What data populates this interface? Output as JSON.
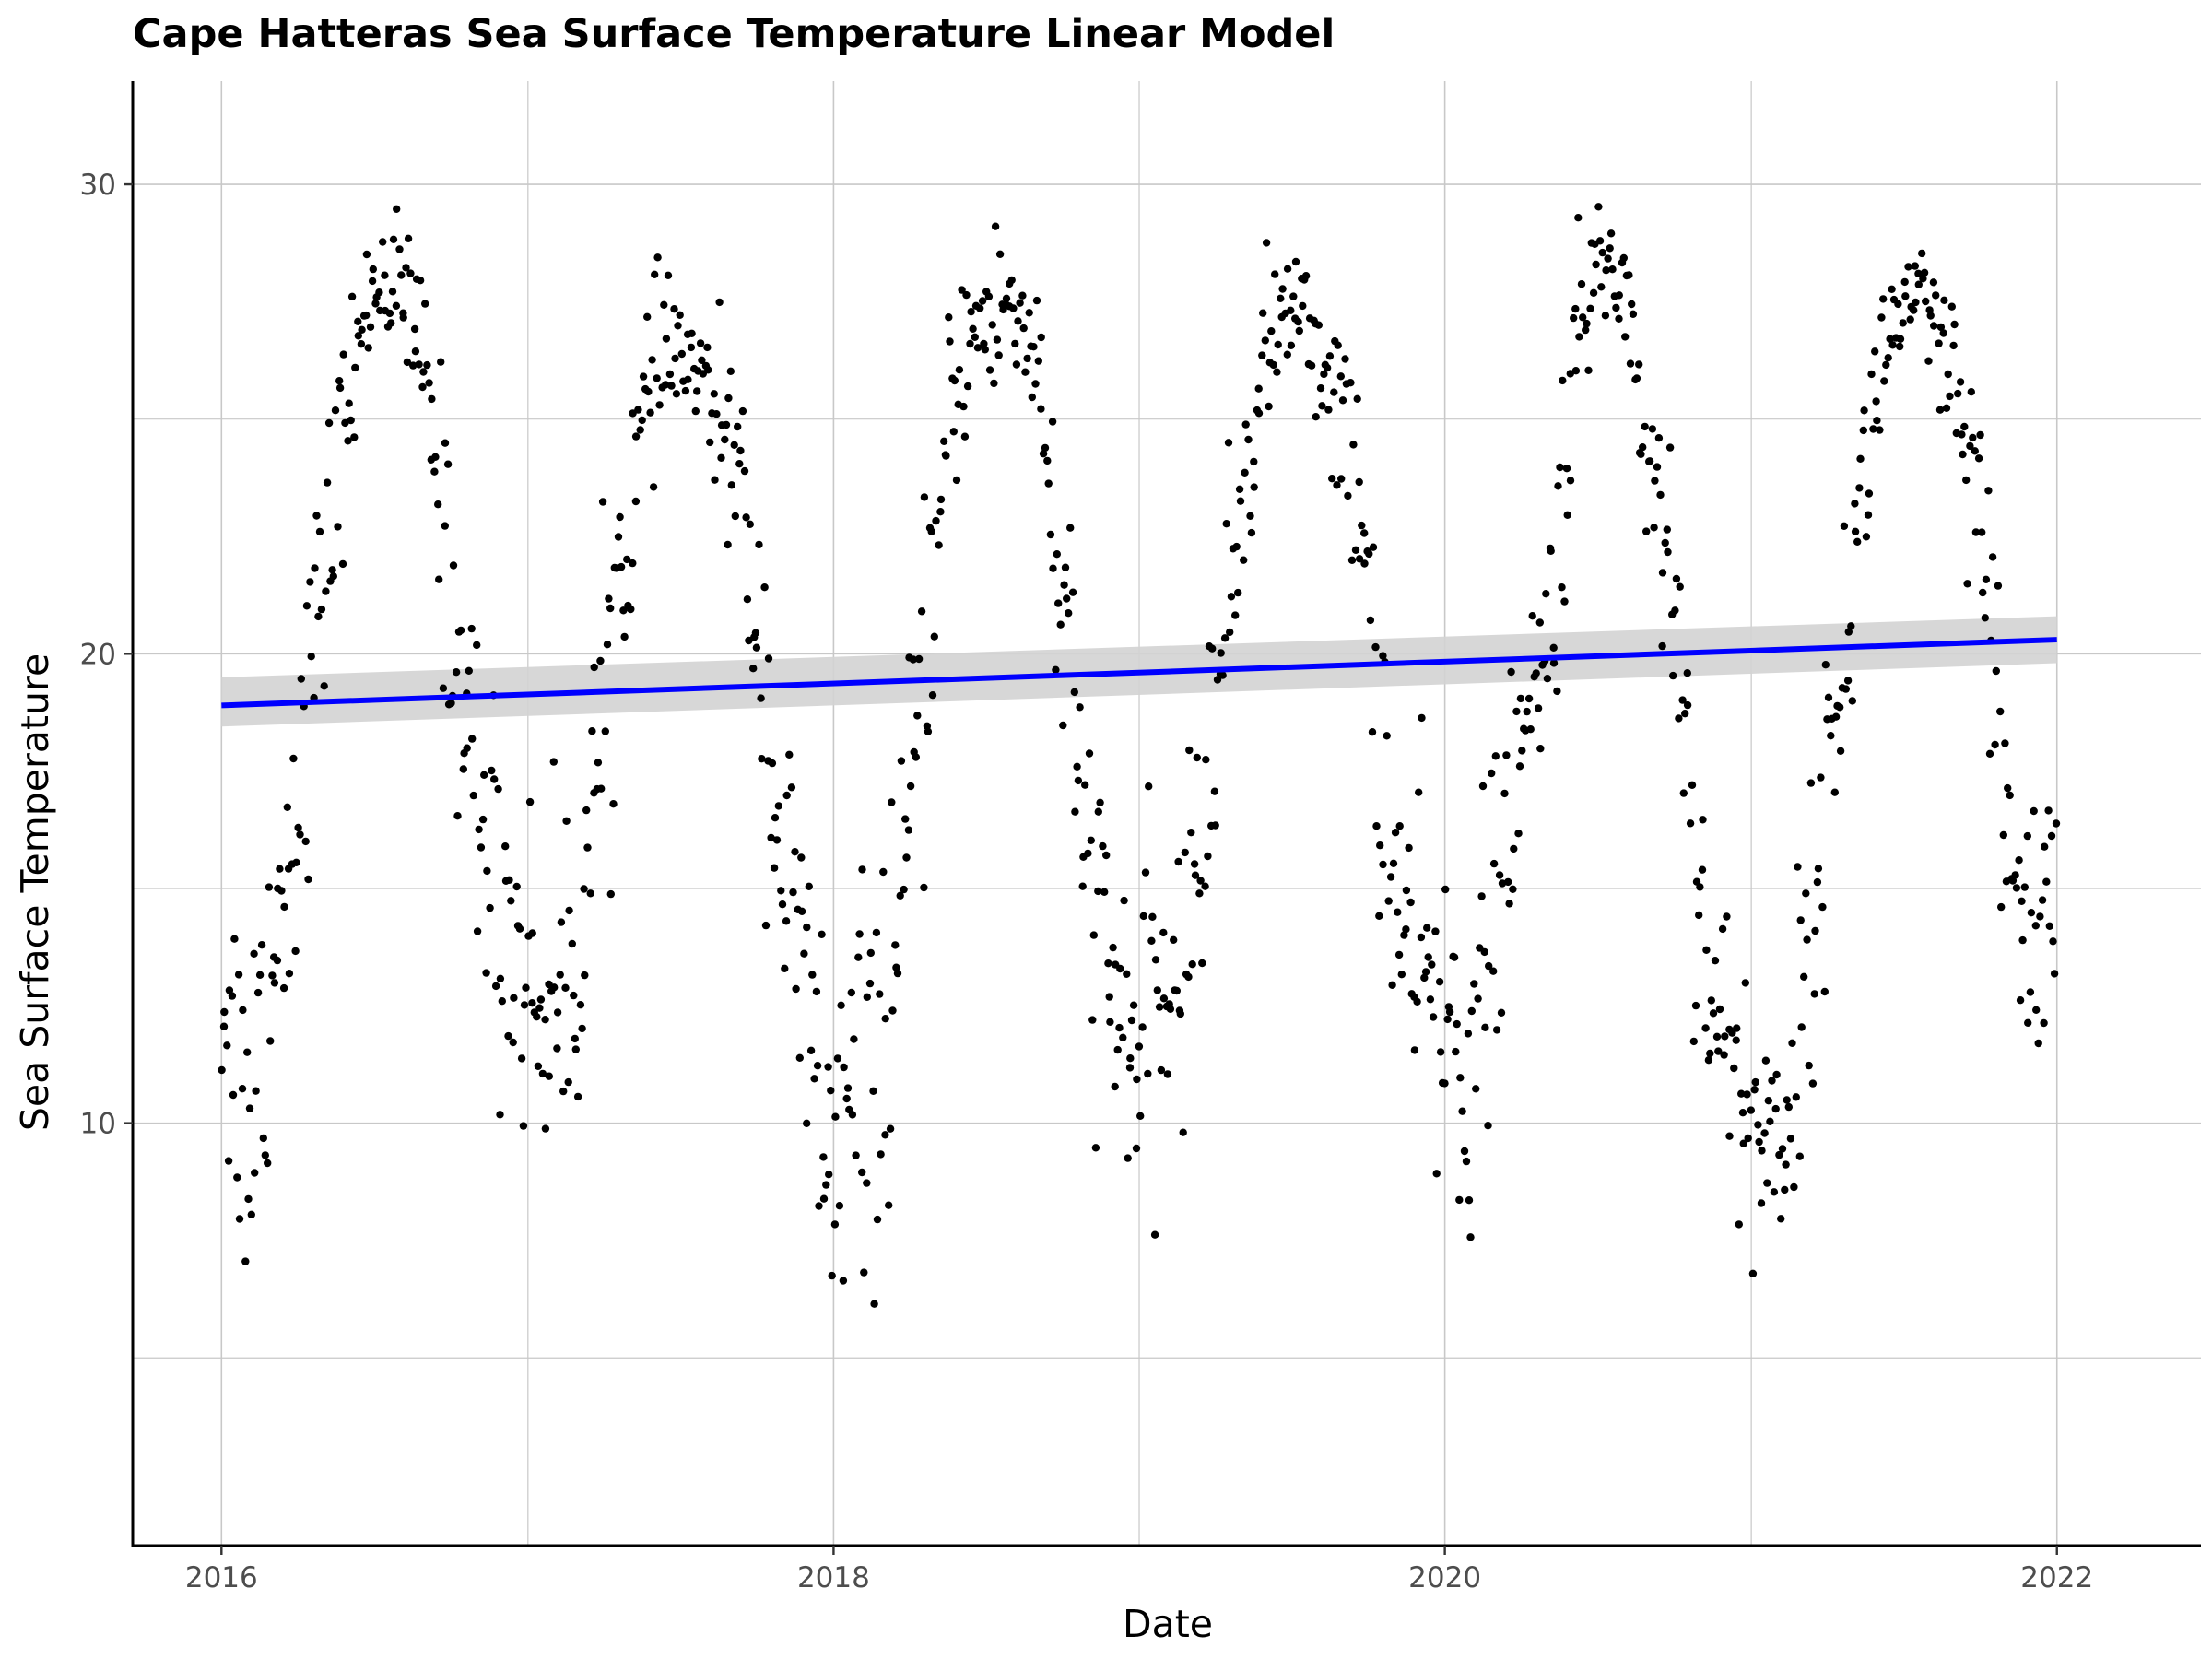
{
  "chart_data": {
    "type": "scatter",
    "title": "Cape Hatteras Sea Surface Temperature Linear Model",
    "xlabel": "Date",
    "ylabel": "Sea Surface Temperature",
    "x_ticks": [
      "2016",
      "2018",
      "2020",
      "2022"
    ],
    "y_ticks": [
      "10",
      "20",
      "30"
    ],
    "xlim": [
      "2015-09-17",
      "2022-06-22"
    ],
    "ylim": [
      1.0,
      32.2
    ],
    "grid": true,
    "legend": "none",
    "colors": {
      "points": "#000000",
      "fit_line": "#0000ff",
      "confidence_band": "#d3d3d3",
      "grid": "#c8c8c8"
    },
    "trend": {
      "type": "linear",
      "x": [
        "2016-01-01",
        "2022-01-01"
      ],
      "y": [
        18.9,
        20.3
      ],
      "ci_lower": [
        18.45,
        19.8
      ],
      "ci_upper": [
        19.5,
        20.8
      ]
    },
    "monthly_profile_x": [
      "2016-01-01",
      "2016-02-01",
      "2016-03-01",
      "2016-04-01",
      "2016-05-01",
      "2016-06-01",
      "2016-07-01",
      "2016-08-01",
      "2016-09-01",
      "2016-10-01",
      "2016-11-01",
      "2016-12-01",
      "2017-01-01",
      "2017-02-01",
      "2017-03-01",
      "2017-04-01",
      "2017-05-01",
      "2017-06-01",
      "2017-07-01",
      "2017-08-01",
      "2017-09-01",
      "2017-10-01",
      "2017-11-01",
      "2017-12-01",
      "2018-01-01",
      "2018-02-01",
      "2018-03-01",
      "2018-04-01",
      "2018-05-01",
      "2018-06-01",
      "2018-07-01",
      "2018-08-01",
      "2018-09-01",
      "2018-10-01",
      "2018-11-01",
      "2018-12-01",
      "2019-01-01",
      "2019-02-01",
      "2019-03-01",
      "2019-04-01",
      "2019-05-01",
      "2019-06-01",
      "2019-07-01",
      "2019-08-01",
      "2019-09-01",
      "2019-10-01",
      "2019-11-01",
      "2019-12-01",
      "2020-01-01",
      "2020-02-01",
      "2020-03-01",
      "2020-04-01",
      "2020-05-01",
      "2020-06-01",
      "2020-07-01",
      "2020-08-01",
      "2020-09-01",
      "2020-10-01",
      "2020-11-01",
      "2020-12-01",
      "2021-01-01",
      "2021-02-01",
      "2021-03-01",
      "2021-04-01",
      "2021-05-01",
      "2021-06-01",
      "2021-07-01",
      "2021-08-01",
      "2021-09-01",
      "2021-10-01",
      "2021-11-01",
      "2021-12-01",
      "2022-01-01"
    ],
    "monthly_profile_y": [
      13.0,
      10.0,
      13.5,
      17.0,
      21.5,
      25.5,
      28.0,
      27.8,
      26.0,
      21.0,
      17.0,
      14.5,
      13.0,
      12.5,
      13.5,
      19.0,
      23.0,
      26.0,
      26.5,
      25.5,
      24.5,
      21.0,
      15.5,
      12.0,
      9.0,
      10.5,
      11.5,
      16.0,
      21.5,
      26.5,
      27.0,
      27.5,
      26.5,
      20.5,
      15.5,
      12.5,
      11.5,
      12.5,
      14.0,
      18.5,
      23.0,
      26.5,
      27.5,
      26.5,
      25.0,
      21.5,
      15.0,
      13.0,
      12.0,
      11.5,
      14.5,
      17.5,
      20.0,
      25.5,
      28.5,
      28.0,
      24.0,
      21.5,
      14.5,
      11.5,
      10.0,
      9.5,
      12.0,
      17.0,
      21.5,
      26.0,
      27.5,
      27.0,
      25.5,
      22.5,
      16.0,
      14.0,
      15.0
    ],
    "monthly_spread": [
      1.8,
      2.2,
      2.0,
      1.6,
      1.5,
      1.0,
      0.6,
      0.8,
      1.0,
      1.8,
      1.8,
      2.0,
      1.8,
      1.8,
      1.8,
      1.6,
      1.5,
      0.9,
      0.7,
      0.8,
      1.0,
      1.6,
      1.8,
      2.2,
      2.4,
      2.2,
      2.0,
      1.6,
      1.6,
      1.1,
      1.0,
      1.0,
      1.0,
      1.8,
      1.8,
      1.8,
      1.8,
      1.6,
      1.6,
      1.6,
      1.4,
      0.9,
      0.6,
      0.8,
      1.0,
      1.8,
      1.8,
      1.8,
      2.0,
      2.0,
      1.6,
      1.4,
      1.4,
      1.4,
      0.6,
      0.8,
      1.4,
      1.6,
      1.6,
      1.6,
      1.6,
      1.6,
      1.6,
      1.4,
      1.4,
      1.0,
      0.7,
      0.8,
      1.0,
      1.6,
      1.6,
      1.6,
      1.6
    ],
    "point_spacing_days": 2
  }
}
